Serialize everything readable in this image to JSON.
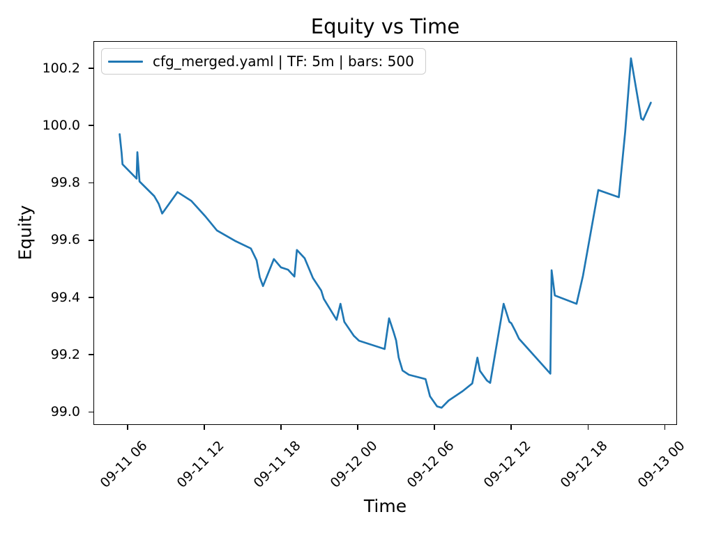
{
  "title": "Equity vs Time",
  "axes": {
    "xlabel": "Time",
    "ylabel": "Equity",
    "x_ticks": [
      {
        "hours": 6,
        "label": "09-11 06"
      },
      {
        "hours": 12,
        "label": "09-11 12"
      },
      {
        "hours": 18,
        "label": "09-11 18"
      },
      {
        "hours": 24,
        "label": "09-12 00"
      },
      {
        "hours": 30,
        "label": "09-12 06"
      },
      {
        "hours": 36,
        "label": "09-12 12"
      },
      {
        "hours": 42,
        "label": "09-12 18"
      },
      {
        "hours": 48,
        "label": "09-13 00"
      }
    ],
    "y_ticks": [
      {
        "value": 99.0,
        "label": "99.0"
      },
      {
        "value": 99.2,
        "label": "99.2"
      },
      {
        "value": 99.4,
        "label": "99.4"
      },
      {
        "value": 99.6,
        "label": "99.6"
      },
      {
        "value": 99.8,
        "label": "99.8"
      },
      {
        "value": 100.0,
        "label": "100.0"
      },
      {
        "value": 100.2,
        "label": "100.2"
      }
    ]
  },
  "legend": {
    "label": "cfg_merged.yaml | TF: 5m | bars: 500"
  },
  "chart_data": {
    "type": "line",
    "title": "Equity vs Time",
    "xlabel": "Time",
    "ylabel": "Equity",
    "x_unit": "hours since 09-11 00:00",
    "x_range_hours": [
      3.35,
      48.95
    ],
    "y_range": [
      98.955,
      100.295
    ],
    "grid": false,
    "legend_position": "upper left",
    "series": [
      {
        "name": "cfg_merged.yaml | TF: 5m | bars: 500",
        "color": "#1f77b4",
        "points": [
          [
            5.4,
            99.97
          ],
          [
            5.55,
            99.905
          ],
          [
            5.62,
            99.865
          ],
          [
            6.72,
            99.815
          ],
          [
            6.78,
            99.907
          ],
          [
            6.95,
            99.805
          ],
          [
            8.1,
            99.754
          ],
          [
            8.45,
            99.727
          ],
          [
            8.72,
            99.693
          ],
          [
            9.92,
            99.768
          ],
          [
            11.0,
            99.737
          ],
          [
            12.1,
            99.683
          ],
          [
            13.0,
            99.634
          ],
          [
            14.4,
            99.598
          ],
          [
            15.65,
            99.571
          ],
          [
            16.1,
            99.53
          ],
          [
            16.35,
            99.47
          ],
          [
            16.6,
            99.44
          ],
          [
            17.45,
            99.534
          ],
          [
            18.0,
            99.505
          ],
          [
            18.55,
            99.497
          ],
          [
            19.05,
            99.473
          ],
          [
            19.25,
            99.566
          ],
          [
            19.85,
            99.537
          ],
          [
            20.5,
            99.468
          ],
          [
            21.15,
            99.424
          ],
          [
            21.35,
            99.395
          ],
          [
            22.35,
            99.322
          ],
          [
            22.65,
            99.378
          ],
          [
            22.95,
            99.315
          ],
          [
            23.7,
            99.266
          ],
          [
            24.1,
            99.249
          ],
          [
            26.1,
            99.22
          ],
          [
            26.45,
            99.327
          ],
          [
            26.8,
            99.28
          ],
          [
            27.0,
            99.25
          ],
          [
            27.2,
            99.19
          ],
          [
            27.5,
            99.145
          ],
          [
            28.0,
            99.13
          ],
          [
            29.3,
            99.115
          ],
          [
            29.65,
            99.055
          ],
          [
            30.2,
            99.02
          ],
          [
            30.55,
            99.015
          ],
          [
            31.1,
            99.04
          ],
          [
            32.2,
            99.073
          ],
          [
            32.95,
            99.1
          ],
          [
            33.35,
            99.19
          ],
          [
            33.55,
            99.144
          ],
          [
            34.1,
            99.11
          ],
          [
            34.35,
            99.102
          ],
          [
            35.4,
            99.378
          ],
          [
            35.85,
            99.315
          ],
          [
            36.0,
            99.31
          ],
          [
            36.35,
            99.28
          ],
          [
            36.6,
            99.256
          ],
          [
            39.05,
            99.134
          ],
          [
            39.15,
            99.495
          ],
          [
            39.4,
            99.407
          ],
          [
            41.1,
            99.378
          ],
          [
            41.6,
            99.476
          ],
          [
            42.8,
            99.775
          ],
          [
            44.4,
            99.75
          ],
          [
            44.9,
            99.98
          ],
          [
            45.35,
            100.235
          ],
          [
            46.15,
            100.025
          ],
          [
            46.3,
            100.02
          ],
          [
            46.9,
            100.08
          ]
        ]
      }
    ]
  },
  "colors": {
    "line": "#1f77b4",
    "spine": "#000000",
    "legend_border": "#cccccc",
    "text": "#000000"
  }
}
